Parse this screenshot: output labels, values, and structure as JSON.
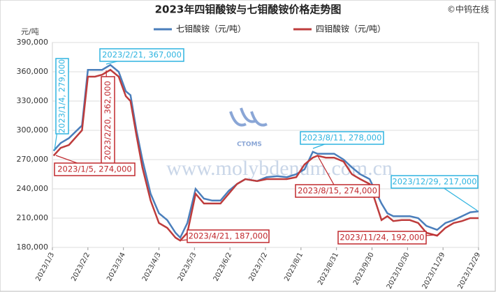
{
  "chart_data": {
    "type": "line",
    "title": "2023年四钼酸铵与七钼酸铵价格走势图",
    "source": "©中钨在线",
    "y_unit": "元/吨",
    "watermark": "www.molybdenum.com.cn",
    "logo_text": "CTOMS",
    "x": [
      "2023/1/4",
      "2023/1/10",
      "2023/1/17",
      "2023/1/28",
      "2023/2/2",
      "2023/2/8",
      "2023/2/14",
      "2023/2/21",
      "2023/2/28",
      "2023/3/6",
      "2023/3/10",
      "2023/3/15",
      "2023/3/20",
      "2023/3/27",
      "2023/4/3",
      "2023/4/10",
      "2023/4/17",
      "2023/4/21",
      "2023/4/27",
      "2023/5/4",
      "2023/5/11",
      "2023/5/18",
      "2023/5/25",
      "2023/6/1",
      "2023/6/8",
      "2023/6/15",
      "2023/6/25",
      "2023/7/3",
      "2023/7/12",
      "2023/7/20",
      "2023/7/28",
      "2023/8/4",
      "2023/8/11",
      "2023/8/15",
      "2023/8/22",
      "2023/8/29",
      "2023/9/6",
      "2023/9/13",
      "2023/9/20",
      "2023/9/28",
      "2023/10/8",
      "2023/10/13",
      "2023/10/18",
      "2023/10/25",
      "2023/11/1",
      "2023/11/8",
      "2023/11/15",
      "2023/11/24",
      "2023/12/1",
      "2023/12/8",
      "2023/12/15",
      "2023/12/22",
      "2023/12/29"
    ],
    "series": [
      {
        "name": "七钼酸铵（元/吨）",
        "color": "#4a7ebb",
        "values": [
          279000,
          287000,
          292000,
          305000,
          362000,
          362000,
          362000,
          367000,
          360000,
          340000,
          336000,
          300000,
          270000,
          235000,
          215000,
          208000,
          195000,
          190000,
          205000,
          240000,
          230000,
          228000,
          228000,
          238000,
          245000,
          250000,
          248000,
          252000,
          253000,
          252000,
          255000,
          260000,
          278000,
          276000,
          276000,
          276000,
          270000,
          262000,
          255000,
          250000,
          225000,
          215000,
          212000,
          212000,
          212000,
          210000,
          202000,
          198000,
          205000,
          208000,
          212000,
          216000,
          217000
        ]
      },
      {
        "name": "四钼酸铵（元/吨）",
        "color": "#be3c3c",
        "values": [
          274000,
          282000,
          285000,
          300000,
          355000,
          355000,
          357000,
          362000,
          355000,
          335000,
          330000,
          295000,
          262000,
          228000,
          205000,
          200000,
          190000,
          187000,
          195000,
          235000,
          225000,
          225000,
          225000,
          235000,
          245000,
          250000,
          248000,
          250000,
          250000,
          250000,
          252000,
          265000,
          272000,
          274000,
          272000,
          272000,
          268000,
          255000,
          250000,
          245000,
          208000,
          212000,
          207000,
          208000,
          208000,
          205000,
          195000,
          192000,
          200000,
          205000,
          207000,
          210000,
          210000
        ]
      }
    ],
    "xlim": [
      "2023/1/3",
      "2023/12/29"
    ],
    "xticks": [
      "2023/1/3",
      "2023/2/2",
      "2023/3/4",
      "2023/4/3",
      "2023/5/3",
      "2023/6/2",
      "2023/7/2",
      "2023/8/1",
      "2023/8/31",
      "2023/9/30",
      "2023/10/30",
      "2023/11/29",
      "2023/12/29"
    ],
    "ylim": [
      180000,
      390000
    ],
    "yticks": [
      {
        "value": 180000,
        "label": "180,000"
      },
      {
        "value": 210000,
        "label": "210,000"
      },
      {
        "value": 240000,
        "label": "240,000"
      },
      {
        "value": 270000,
        "label": "270,000"
      },
      {
        "value": 300000,
        "label": "300,000"
      },
      {
        "value": 330000,
        "label": "330,000"
      },
      {
        "value": 360000,
        "label": "360,000"
      },
      {
        "value": 390000,
        "label": "390,000"
      }
    ],
    "grid": true,
    "legend": "top",
    "annotations": [
      {
        "text": "2023/1/4, 279,000",
        "color": "#2fb4e0"
      },
      {
        "text": "2023/2/21, 367,000",
        "color": "#2fb4e0"
      },
      {
        "text": "2023/2/20, 362,000",
        "color": "#c0282d"
      },
      {
        "text": "2023/1/5, 274,000",
        "color": "#c0282d"
      },
      {
        "text": "2023/4/21, 187,000",
        "color": "#c0282d"
      },
      {
        "text": "2023/8/11, 278,000",
        "color": "#2fb4e0"
      },
      {
        "text": "2023/8/15, 274,000",
        "color": "#c0282d"
      },
      {
        "text": "2023/12/29, 217,000",
        "color": "#2fb4e0"
      },
      {
        "text": "2023/11/24, 192,000",
        "color": "#c0282d"
      }
    ]
  }
}
